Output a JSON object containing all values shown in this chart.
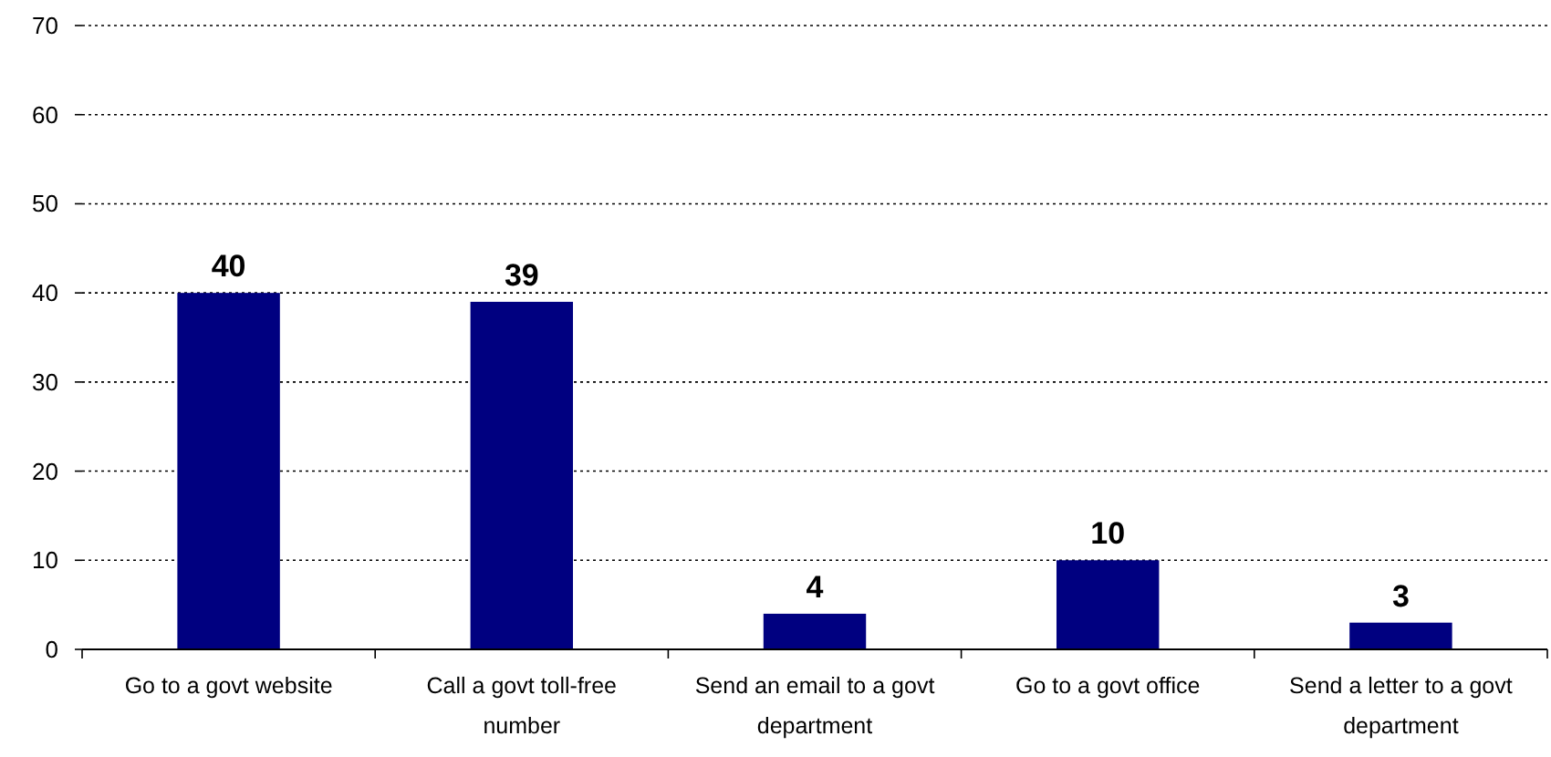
{
  "chart_data": {
    "type": "bar",
    "categories": [
      "Go to a govt website",
      "Call a govt toll-free number",
      "Send an email to a govt department",
      "Go to a govt office",
      "Send a letter to a govt department"
    ],
    "values": [
      40,
      39,
      4,
      10,
      3
    ],
    "color": "#000080",
    "ylim": [
      0,
      70
    ],
    "yticks": [
      0,
      10,
      20,
      30,
      40,
      50,
      60,
      70
    ],
    "grid": "y",
    "data_labels": true
  }
}
